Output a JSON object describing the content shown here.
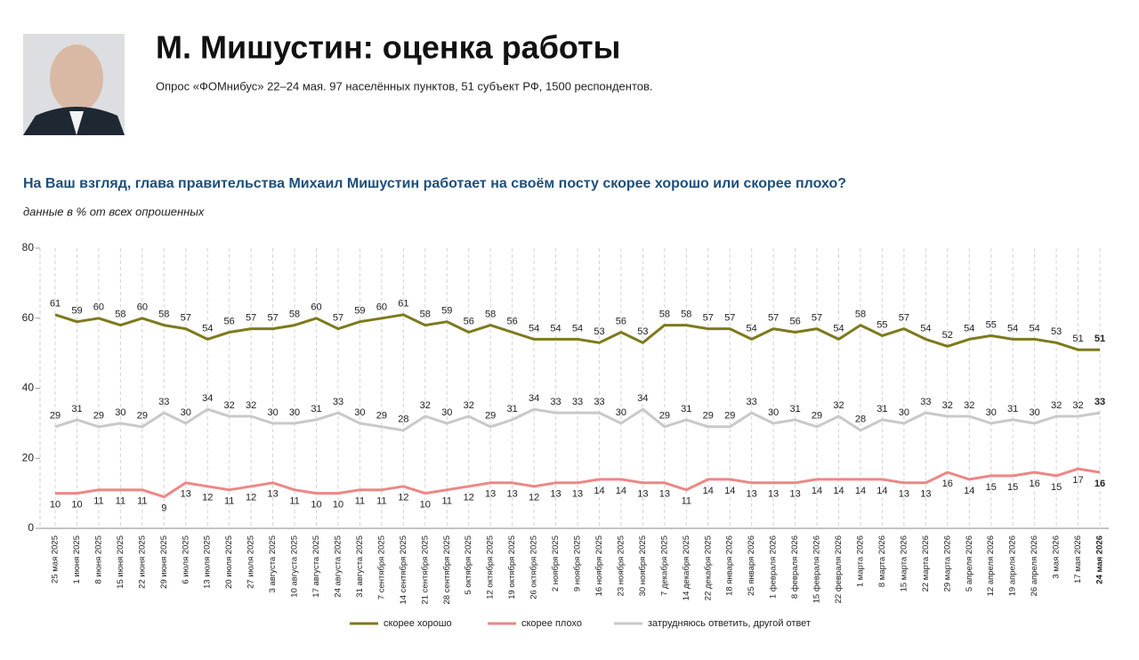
{
  "header": {
    "title": "М. Мишустин: оценка работы",
    "subtitle": "Опрос «ФОМнибус» 22–24 мая. 97 населённых пунктов, 51 субъект РФ, 1500 респондентов."
  },
  "chart_data": {
    "type": "line",
    "title": "На Ваш взгляд, глава правительства Михаил Мишустин работает на своём посту скорее хорошо или скорее плохо?",
    "subtitle": "данные в % от всех опрошенных",
    "categories": [
      "25 мая 2025",
      "1 июня 2025",
      "8 июня 2025",
      "15 июня 2025",
      "22 июня 2025",
      "29 июня 2025",
      "6 июля 2025",
      "13 июля 2025",
      "20 июля 2025",
      "27 июля 2025",
      "3 августа 2025",
      "10 августа 2025",
      "17 августа 2025",
      "24 августа 2025",
      "31 августа 2025",
      "7 сентября 2025",
      "14 сентября 2025",
      "21 сентября 2025",
      "28 сентября 2025",
      "5 октября 2025",
      "12 октября 2025",
      "19 октября 2025",
      "26 октября 2025",
      "2 ноября 2025",
      "9 ноября 2025",
      "16 ноября 2025",
      "23 ноября 2025",
      "30 ноября 2025",
      "7 декабря 2025",
      "14 декабря 2025",
      "22 декабря 2025",
      "18 января 2026",
      "25 января 2026",
      "1 февраля 2026",
      "8 февраля 2026",
      "15 февраля 2026",
      "22 февраля 2026",
      "1 марта 2026",
      "8 марта 2026",
      "15 марта 2026",
      "22 марта 2026",
      "29 марта 2026",
      "5 апреля 2026",
      "12 апреля 2026",
      "19 апреля 2026",
      "26 апреля 2026",
      "3 мая 2026",
      "17 мая 2026",
      "24 мая 2026"
    ],
    "series": [
      {
        "name": "скорее хорошо",
        "color": "#7d7a1c",
        "label_position": "above",
        "values": [
          61,
          59,
          60,
          58,
          60,
          58,
          57,
          54,
          56,
          57,
          57,
          58,
          60,
          57,
          59,
          60,
          61,
          58,
          59,
          56,
          58,
          56,
          54,
          54,
          54,
          53,
          56,
          53,
          58,
          58,
          57,
          57,
          54,
          57,
          56,
          57,
          54,
          58,
          55,
          57,
          54,
          52,
          54,
          55,
          54,
          54,
          53,
          51,
          51
        ]
      },
      {
        "name": "скорее плохо",
        "color": "#ee8686",
        "label_position": "below",
        "values": [
          10,
          10,
          11,
          11,
          11,
          9,
          13,
          12,
          11,
          12,
          13,
          11,
          10,
          10,
          11,
          11,
          12,
          10,
          11,
          12,
          13,
          13,
          12,
          13,
          13,
          14,
          14,
          13,
          13,
          11,
          14,
          14,
          13,
          13,
          13,
          14,
          14,
          14,
          14,
          13,
          13,
          16,
          14,
          15,
          15,
          16,
          15,
          17,
          16
        ]
      },
      {
        "name": "затрудняюсь ответить, другой ответ",
        "color": "#c9c9c9",
        "label_position": "above",
        "values": [
          29,
          31,
          29,
          30,
          29,
          33,
          30,
          34,
          32,
          32,
          30,
          30,
          31,
          33,
          30,
          29,
          28,
          32,
          30,
          32,
          29,
          31,
          34,
          33,
          33,
          33,
          30,
          34,
          29,
          31,
          29,
          29,
          33,
          30,
          31,
          29,
          32,
          28,
          31,
          30,
          33,
          32,
          32,
          30,
          31,
          30,
          32,
          32,
          33
        ]
      }
    ],
    "ylim": [
      0,
      80
    ],
    "yticks": [
      0,
      20,
      40,
      60,
      80
    ],
    "grid": true,
    "legend": "bottom"
  }
}
